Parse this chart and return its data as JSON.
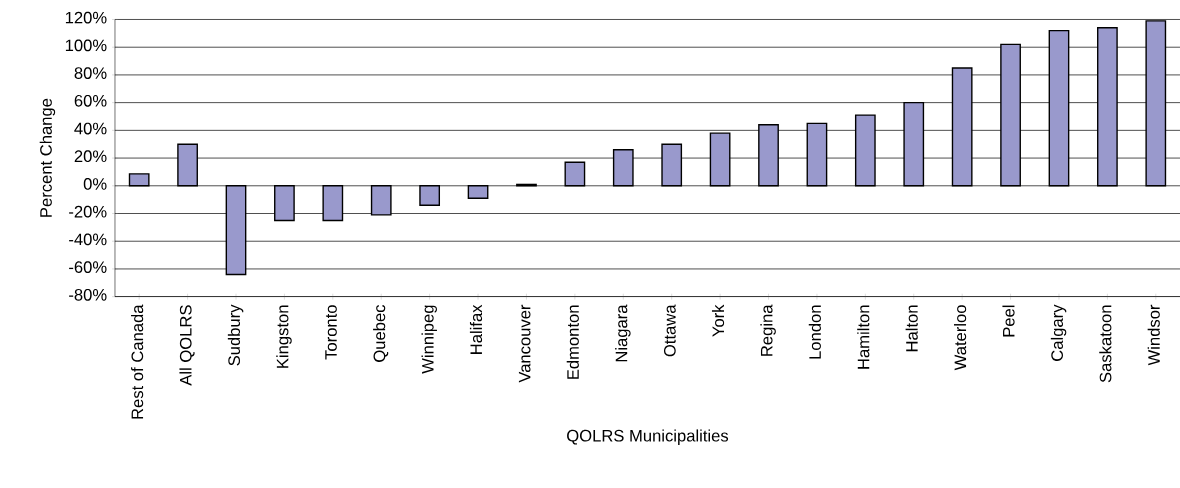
{
  "chart_data": {
    "type": "bar",
    "xlabel": "QOLRS Municipalities",
    "ylabel": "Percent Change",
    "categories": [
      "Rest of Canada",
      "All QOLRS",
      "Sudbury",
      "Kingston",
      "Toronto",
      "Quebec",
      "Winnipeg",
      "Halifax",
      "Vancouver",
      "Edmonton",
      "Niagara",
      "Ottawa",
      "York",
      "Regina",
      "London",
      "Hamilton",
      "Halton",
      "Waterloo",
      "Peel",
      "Calgary",
      "Saskatoon",
      "Windsor"
    ],
    "values": [
      8.6,
      30,
      -64,
      -25,
      -25,
      -21,
      -14,
      -9,
      1,
      17,
      26,
      30,
      38,
      44,
      45,
      51,
      60,
      85,
      102,
      112,
      114,
      119
    ],
    "color": "#9999cc",
    "ylim": [
      -80,
      120
    ],
    "yticks": [
      {
        "value": -80,
        "label": "-80%"
      },
      {
        "value": -60,
        "label": "-60%"
      },
      {
        "value": -40,
        "label": "-40%"
      },
      {
        "value": -20,
        "label": "-20%"
      },
      {
        "value": 0,
        "label": "0%"
      },
      {
        "value": 20,
        "label": "20%"
      },
      {
        "value": 40,
        "label": "40%"
      },
      {
        "value": 60,
        "label": "60%"
      },
      {
        "value": 80,
        "label": "80%"
      },
      {
        "value": 100,
        "label": "100%"
      },
      {
        "value": 120,
        "label": "120%"
      }
    ],
    "grid": "y"
  }
}
